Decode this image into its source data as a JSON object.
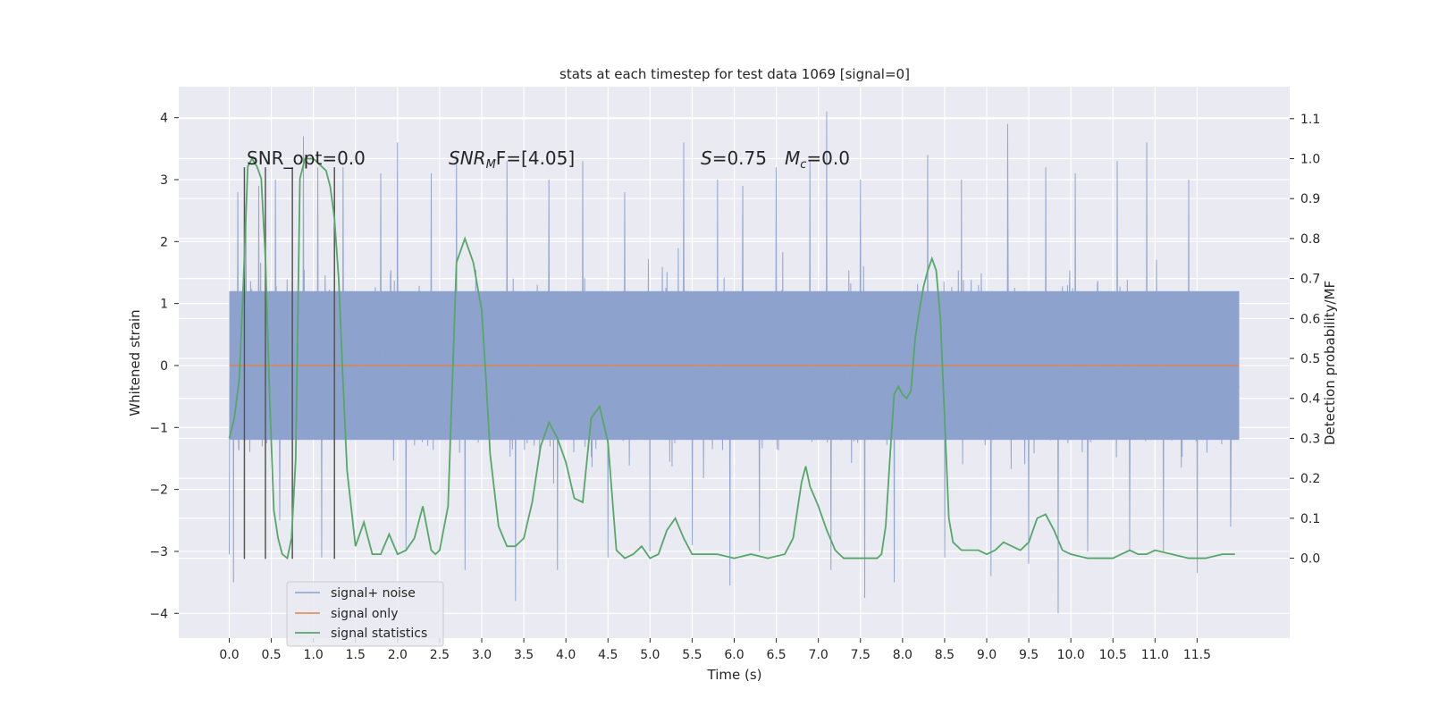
{
  "chart_data": {
    "type": "line",
    "title": "stats at each timestep for test data 1069 [signal=0]",
    "xlabel": "Time (s)",
    "ylabel": "Whitened strain",
    "ylabel_right": "Detection probability/MF",
    "xlim": [
      -0.6,
      12.6
    ],
    "ylim": [
      -4.4,
      4.5
    ],
    "ylim_right": [
      -0.2,
      1.18
    ],
    "x_ticks": [
      0.0,
      0.5,
      1.0,
      1.5,
      2.0,
      2.5,
      3.0,
      3.5,
      4.0,
      4.5,
      5.0,
      5.5,
      6.0,
      6.5,
      7.0,
      7.5,
      8.0,
      8.5,
      9.0,
      9.5,
      10.0,
      10.5,
      11.0,
      11.5
    ],
    "x_tick_labels": [
      "0.0",
      "0.5",
      "1.0",
      "1.5",
      "2.0",
      "2.5",
      "3.0",
      "3.5",
      "4.0",
      "4.5",
      "5.0",
      "5.5",
      "6.0",
      "6.5",
      "7.0",
      "7.5",
      "8.0",
      "8.5",
      "9.0",
      "9.5",
      "10.0",
      "10.5",
      "11.0",
      "11.5"
    ],
    "y_ticks": [
      -4,
      -3,
      -2,
      -1,
      0,
      1,
      2,
      3,
      4
    ],
    "y_tick_labels": [
      "−4",
      "−3",
      "−2",
      "−1",
      "0",
      "1",
      "2",
      "3",
      "4"
    ],
    "y_right_ticks": [
      0.0,
      0.1,
      0.2,
      0.3,
      0.4,
      0.5,
      0.6,
      0.7,
      0.8,
      0.9,
      1.0,
      1.1
    ],
    "y_right_tick_labels": [
      "0.0",
      "0.1",
      "0.2",
      "0.3",
      "0.4",
      "0.5",
      "0.6",
      "0.7",
      "0.8",
      "0.9",
      "1.0",
      "1.1"
    ],
    "grid": true,
    "legend_position": "lower-left",
    "colors": {
      "background": "#eaeaf2",
      "noise": "#8da2cc",
      "signal": "#dd8452",
      "statistics": "#55a868",
      "vlines": "#555555"
    },
    "annotations": {
      "snr_opt": "SNR_opt=0.0",
      "snr_mf_base": "SNR",
      "snr_mf_sub": "M",
      "snr_mf_rest": "F=[4.05]",
      "s_label": "S",
      "s_value": "=0.75",
      "mc_base": "M",
      "mc_sub": "c",
      "mc_value": "=0.0"
    },
    "vertical_lines": {
      "x": [
        0.18,
        0.43,
        0.75,
        1.25
      ],
      "y_range": [
        -3.12,
        3.2
      ]
    },
    "series": [
      {
        "name": "signal+ noise",
        "style": "dense-noise",
        "x_range": [
          0.0,
          12.0
        ],
        "core_range": [
          -1.2,
          1.2
        ],
        "upper_spikes": [
          [
            0.05,
            2.3
          ],
          [
            0.1,
            2.8
          ],
          [
            0.2,
            2.6
          ],
          [
            0.35,
            2.9
          ],
          [
            0.55,
            3.0
          ],
          [
            0.88,
            3.7
          ],
          [
            1.05,
            3.2
          ],
          [
            1.35,
            3.2
          ],
          [
            1.8,
            3.1
          ],
          [
            2.0,
            3.6
          ],
          [
            2.4,
            3.1
          ],
          [
            2.7,
            3.4
          ],
          [
            3.3,
            3.3
          ],
          [
            3.8,
            3.0
          ],
          [
            4.2,
            3.3
          ],
          [
            4.7,
            2.8
          ],
          [
            5.4,
            3.6
          ],
          [
            5.8,
            3.0
          ],
          [
            6.1,
            2.9
          ],
          [
            6.5,
            3.2
          ],
          [
            6.9,
            3.3
          ],
          [
            7.1,
            4.1
          ],
          [
            7.5,
            3.0
          ],
          [
            7.9,
            3.0
          ],
          [
            8.3,
            3.4
          ],
          [
            8.7,
            3.0
          ],
          [
            9.05,
            3.9
          ],
          [
            9.25,
            3.9
          ],
          [
            9.7,
            3.2
          ],
          [
            10.05,
            3.1
          ],
          [
            10.55,
            3.3
          ],
          [
            10.9,
            3.6
          ],
          [
            11.4,
            3.0
          ],
          [
            11.9,
            2.9
          ]
        ],
        "lower_spikes": [
          [
            0.0,
            -3.05
          ],
          [
            0.05,
            -3.5
          ],
          [
            0.6,
            -2.5
          ],
          [
            1.1,
            -3.1
          ],
          [
            2.1,
            -3.0
          ],
          [
            2.8,
            -3.3
          ],
          [
            3.4,
            -3.8
          ],
          [
            3.9,
            -3.3
          ],
          [
            4.5,
            -3.1
          ],
          [
            5.0,
            -3.0
          ],
          [
            5.5,
            -2.9
          ],
          [
            5.95,
            -3.55
          ],
          [
            6.3,
            -3.0
          ],
          [
            7.15,
            -3.3
          ],
          [
            7.55,
            -3.75
          ],
          [
            7.9,
            -3.5
          ],
          [
            8.5,
            -3.1
          ],
          [
            9.05,
            -3.4
          ],
          [
            9.5,
            -3.2
          ],
          [
            9.85,
            -4.0
          ],
          [
            10.2,
            -3.0
          ],
          [
            10.7,
            -3.0
          ],
          [
            11.1,
            -3.0
          ],
          [
            11.5,
            -3.35
          ],
          [
            11.9,
            -2.6
          ]
        ]
      },
      {
        "name": "signal only",
        "x": [
          0.0,
          12.0
        ],
        "y": [
          0.0,
          0.0
        ]
      },
      {
        "name": "signal statistics",
        "axis": "right",
        "x": [
          0.0,
          0.06,
          0.12,
          0.17,
          0.22,
          0.27,
          0.33,
          0.38,
          0.43,
          0.48,
          0.53,
          0.58,
          0.63,
          0.69,
          0.74,
          0.79,
          0.84,
          0.9,
          0.95,
          1.0,
          1.05,
          1.1,
          1.15,
          1.2,
          1.25,
          1.3,
          1.35,
          1.4,
          1.5,
          1.6,
          1.7,
          1.8,
          1.9,
          2.0,
          2.1,
          2.2,
          2.3,
          2.4,
          2.45,
          2.5,
          2.6,
          2.7,
          2.8,
          2.9,
          3.0,
          3.05,
          3.1,
          3.2,
          3.3,
          3.4,
          3.5,
          3.6,
          3.7,
          3.8,
          3.9,
          4.0,
          4.1,
          4.2,
          4.3,
          4.4,
          4.5,
          4.6,
          4.7,
          4.8,
          4.9,
          5.0,
          5.1,
          5.2,
          5.3,
          5.4,
          5.5,
          5.6,
          5.8,
          6.0,
          6.2,
          6.4,
          6.6,
          6.7,
          6.8,
          6.85,
          6.9,
          7.0,
          7.1,
          7.2,
          7.3,
          7.5,
          7.7,
          7.75,
          7.8,
          7.85,
          7.9,
          7.95,
          8.0,
          8.05,
          8.1,
          8.15,
          8.2,
          8.25,
          8.3,
          8.35,
          8.4,
          8.45,
          8.5,
          8.55,
          8.6,
          8.7,
          8.8,
          8.9,
          9.0,
          9.1,
          9.2,
          9.3,
          9.4,
          9.5,
          9.6,
          9.7,
          9.8,
          9.9,
          10.0,
          10.2,
          10.4,
          10.5,
          10.6,
          10.7,
          10.8,
          10.9,
          11.0,
          11.2,
          11.4,
          11.6,
          11.8,
          11.95
        ],
        "y": [
          0.3,
          0.35,
          0.45,
          0.7,
          0.98,
          1.0,
          0.98,
          0.95,
          0.75,
          0.4,
          0.12,
          0.05,
          0.01,
          0.0,
          0.05,
          0.25,
          0.95,
          1.0,
          1.0,
          1.0,
          0.99,
          0.98,
          0.97,
          0.93,
          0.85,
          0.7,
          0.45,
          0.22,
          0.03,
          0.09,
          0.01,
          0.01,
          0.06,
          0.01,
          0.02,
          0.05,
          0.13,
          0.02,
          0.01,
          0.02,
          0.13,
          0.74,
          0.8,
          0.74,
          0.62,
          0.45,
          0.26,
          0.08,
          0.03,
          0.03,
          0.05,
          0.14,
          0.28,
          0.34,
          0.3,
          0.24,
          0.15,
          0.14,
          0.35,
          0.38,
          0.29,
          0.02,
          0.0,
          0.01,
          0.03,
          0.0,
          0.01,
          0.07,
          0.1,
          0.05,
          0.01,
          0.01,
          0.01,
          0.0,
          0.01,
          0.0,
          0.01,
          0.05,
          0.19,
          0.23,
          0.18,
          0.13,
          0.07,
          0.02,
          0.0,
          0.0,
          0.0,
          0.01,
          0.08,
          0.25,
          0.41,
          0.43,
          0.41,
          0.4,
          0.42,
          0.55,
          0.62,
          0.68,
          0.72,
          0.75,
          0.72,
          0.6,
          0.35,
          0.1,
          0.04,
          0.02,
          0.02,
          0.02,
          0.01,
          0.02,
          0.04,
          0.03,
          0.02,
          0.04,
          0.1,
          0.11,
          0.07,
          0.02,
          0.01,
          0.0,
          0.0,
          0.0,
          0.01,
          0.02,
          0.01,
          0.01,
          0.02,
          0.01,
          0.0,
          0.0,
          0.01,
          0.01
        ]
      }
    ]
  }
}
